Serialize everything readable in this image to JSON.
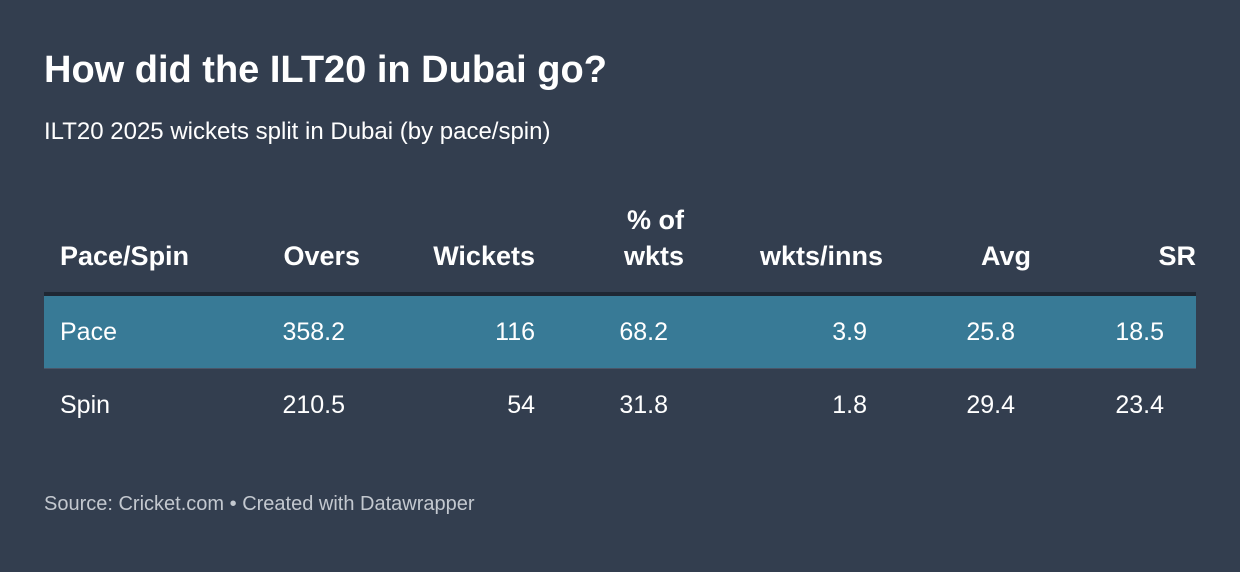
{
  "title": "How did the ILT20 in Dubai go?",
  "subtitle": "ILT20 2025 wickets split in Dubai (by pace/spin)",
  "footer": {
    "source": "Source: Cricket.com",
    "separator": "•",
    "credit": "Created with Datawrapper"
  },
  "colors": {
    "background": "#333e4f",
    "highlight_row": "#387a96",
    "text": "#ffffff",
    "footer_text": "#c3c8cf"
  },
  "chart_data": {
    "type": "table",
    "title": "How did the ILT20 in Dubai go?",
    "subtitle": "ILT20 2025 wickets split in Dubai (by pace/spin)",
    "columns": [
      {
        "label_line1": "Pace/Spin",
        "label_line2": ""
      },
      {
        "label_line1": "Overs",
        "label_line2": ""
      },
      {
        "label_line1": "Wickets",
        "label_line2": ""
      },
      {
        "label_line1": "% of",
        "label_line2": "wkts"
      },
      {
        "label_line1": "wkts/inns",
        "label_line2": ""
      },
      {
        "label_line1": "Avg",
        "label_line2": ""
      },
      {
        "label_line1": "SR",
        "label_line2": ""
      }
    ],
    "rows": [
      {
        "cells": [
          "Pace",
          "358.2",
          "116",
          "68.2",
          "3.9",
          "25.8",
          "18.5"
        ],
        "highlighted": true
      },
      {
        "cells": [
          "Spin",
          "210.5",
          "54",
          "31.8",
          "1.8",
          "29.4",
          "23.4"
        ],
        "highlighted": false
      }
    ]
  }
}
